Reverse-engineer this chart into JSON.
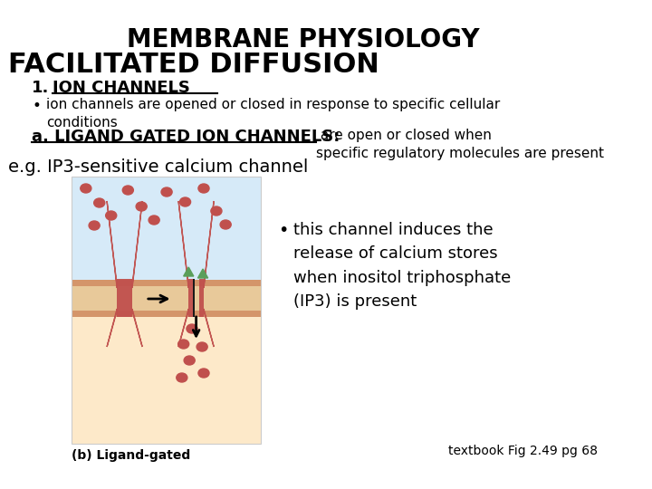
{
  "title": "MEMBRANE PHYSIOLOGY",
  "subtitle": "FACILITATED DIFFUSION",
  "section1_num": "1.",
  "section1_title": "ION CHANNELS",
  "bullet1": "ion channels are opened or closed in response to specific cellular\nconditions",
  "subsection_a_bold": "a. LIGAND GATED ION CHANNELS:",
  "subsection_a_rest": " are open or closed when\nspecific regulatory molecules are present",
  "eg_line": "e.g. IP3-sensitive calcium channel",
  "caption": "(b) Ligand-gated",
  "reference": "textbook Fig 2.49 pg 68",
  "bullet2_text": "this channel induces the\nrelease of calcium stores\nwhen inositol triphosphate\n(IP3) is present",
  "bg_color": "#ffffff",
  "text_color": "#000000",
  "img_bg_top": "#d6eaf8",
  "img_bg_bottom": "#fde9c9",
  "membrane_tan": "#e8c99a",
  "membrane_dark": "#c0504d",
  "calcium_color": "#c0504d",
  "arrow_color": "#000000",
  "ligand_color": "#5a9e5a",
  "membrane_band_color": "#d4956a"
}
